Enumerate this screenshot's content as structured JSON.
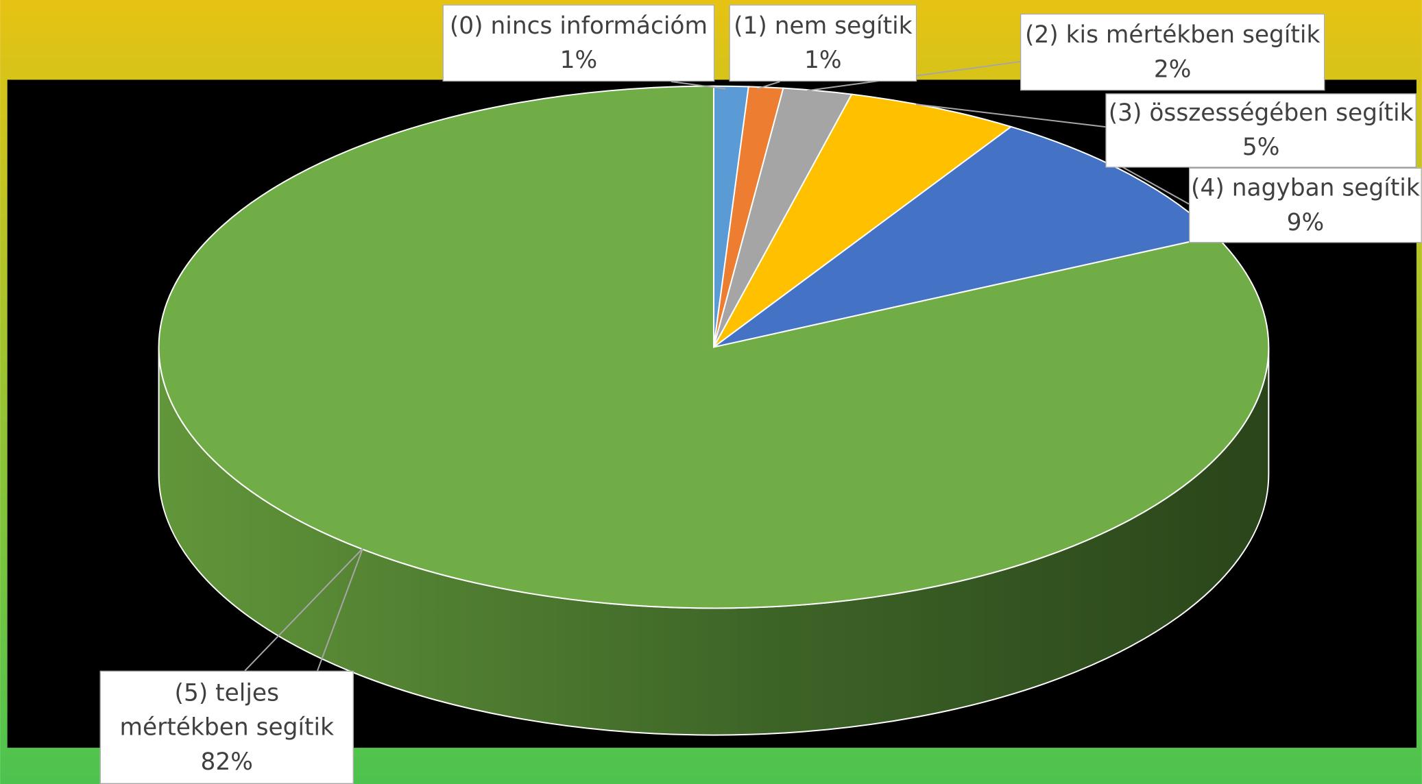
{
  "chart_data": {
    "type": "pie",
    "categories": [
      "(0) nincs információm",
      "(1) nem segítik",
      "(2) kis mértékben segítik",
      "(3) összességében segítik",
      "(4) nagyban segítik",
      "(5) teljes mértékben segítik"
    ],
    "values": [
      1,
      1,
      2,
      5,
      9,
      82
    ],
    "value_labels": [
      "1%",
      "1%",
      "2%",
      "5%",
      "9%",
      "82%"
    ],
    "colors": [
      "#5b9bd5",
      "#ed7d31",
      "#a5a5a5",
      "#ffc000",
      "#4472c4",
      "#70ad47"
    ]
  }
}
